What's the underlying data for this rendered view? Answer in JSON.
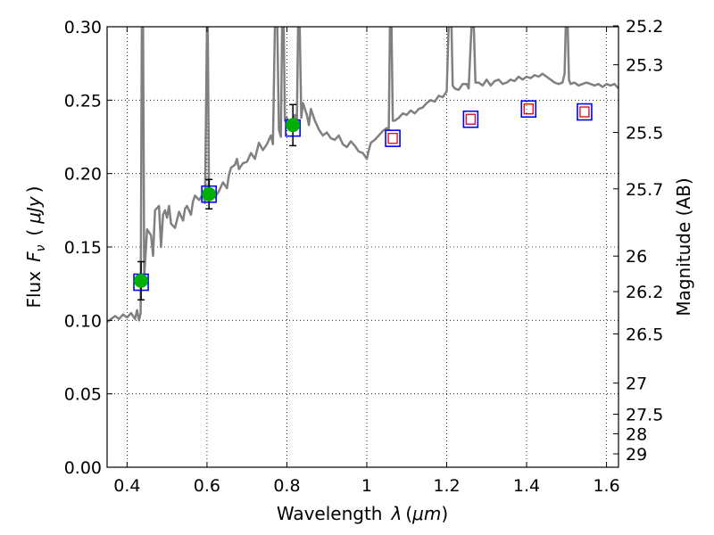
{
  "chart_data": {
    "type": "line",
    "title": "",
    "xlabel": "Wavelength",
    "xlabel_symbol": "λ",
    "xlabel_unit": "μm",
    "ylabel": "Flux",
    "ylabel_symbol": "F",
    "ylabel_symbol_sub": "ν",
    "ylabel_unit": "μJy",
    "y2label": "Magnitude (AB)",
    "xlim": [
      0.35,
      1.63
    ],
    "ylim": [
      0.0,
      0.3
    ],
    "grid": true,
    "x_ticks": [
      0.4,
      0.6,
      0.8,
      1.0,
      1.2,
      1.4,
      1.6
    ],
    "x_tick_labels": [
      "0.4",
      "0.6",
      "0.8",
      "1",
      "1.2",
      "1.4",
      "1.6"
    ],
    "y_ticks": [
      0.0,
      0.05,
      0.1,
      0.15,
      0.2,
      0.25,
      0.3
    ],
    "y_tick_labels": [
      "0.00",
      "0.05",
      "0.10",
      "0.15",
      "0.20",
      "0.25",
      "0.30"
    ],
    "y2_ticks": [
      {
        "label": "25.2",
        "flux": 0.3006
      },
      {
        "label": "25.3",
        "flux": 0.2741
      },
      {
        "label": "25.5",
        "flux": 0.228
      },
      {
        "label": "25.7",
        "flux": 0.1896
      },
      {
        "label": "26",
        "flux": 0.1438
      },
      {
        "label": "26.2",
        "flux": 0.1196
      },
      {
        "label": "26.5",
        "flux": 0.0908
      },
      {
        "label": "27",
        "flux": 0.0573
      },
      {
        "label": "27.5",
        "flux": 0.0361
      },
      {
        "label": "28",
        "flux": 0.0228
      },
      {
        "label": "29",
        "flux": 0.0091
      }
    ],
    "series": [
      {
        "style": "line",
        "color": "#808080",
        "points": [
          [
            0.35,
            0.099
          ],
          [
            0.36,
            0.101
          ],
          [
            0.37,
            0.103
          ],
          [
            0.38,
            0.101
          ],
          [
            0.39,
            0.104
          ],
          [
            0.4,
            0.102
          ],
          [
            0.41,
            0.105
          ],
          [
            0.42,
            0.101
          ],
          [
            0.425,
            0.107
          ],
          [
            0.43,
            0.1
          ],
          [
            0.434,
            0.105
          ],
          [
            0.437,
            0.3
          ],
          [
            0.44,
            0.3
          ],
          [
            0.443,
            0.13
          ],
          [
            0.45,
            0.162
          ],
          [
            0.46,
            0.158
          ],
          [
            0.465,
            0.144
          ],
          [
            0.47,
            0.175
          ],
          [
            0.48,
            0.178
          ],
          [
            0.485,
            0.15
          ],
          [
            0.49,
            0.172
          ],
          [
            0.495,
            0.175
          ],
          [
            0.5,
            0.17
          ],
          [
            0.505,
            0.178
          ],
          [
            0.51,
            0.166
          ],
          [
            0.52,
            0.163
          ],
          [
            0.53,
            0.174
          ],
          [
            0.54,
            0.168
          ],
          [
            0.545,
            0.176
          ],
          [
            0.55,
            0.178
          ],
          [
            0.56,
            0.172
          ],
          [
            0.565,
            0.181
          ],
          [
            0.57,
            0.185
          ],
          [
            0.58,
            0.182
          ],
          [
            0.59,
            0.186
          ],
          [
            0.595,
            0.18
          ],
          [
            0.6,
            0.3
          ],
          [
            0.602,
            0.3
          ],
          [
            0.605,
            0.183
          ],
          [
            0.61,
            0.186
          ],
          [
            0.62,
            0.184
          ],
          [
            0.63,
            0.188
          ],
          [
            0.64,
            0.194
          ],
          [
            0.65,
            0.19
          ],
          [
            0.655,
            0.199
          ],
          [
            0.66,
            0.204
          ],
          [
            0.67,
            0.206
          ],
          [
            0.675,
            0.21
          ],
          [
            0.68,
            0.203
          ],
          [
            0.69,
            0.207
          ],
          [
            0.7,
            0.208
          ],
          [
            0.71,
            0.214
          ],
          [
            0.72,
            0.21
          ],
          [
            0.73,
            0.221
          ],
          [
            0.74,
            0.216
          ],
          [
            0.75,
            0.22
          ],
          [
            0.76,
            0.226
          ],
          [
            0.765,
            0.22
          ],
          [
            0.77,
            0.3
          ],
          [
            0.776,
            0.3
          ],
          [
            0.78,
            0.23
          ],
          [
            0.785,
            0.225
          ],
          [
            0.788,
            0.3
          ],
          [
            0.792,
            0.3
          ],
          [
            0.795,
            0.236
          ],
          [
            0.8,
            0.238
          ],
          [
            0.81,
            0.231
          ],
          [
            0.82,
            0.24
          ],
          [
            0.825,
            0.234
          ],
          [
            0.828,
            0.3
          ],
          [
            0.832,
            0.3
          ],
          [
            0.836,
            0.238
          ],
          [
            0.84,
            0.248
          ],
          [
            0.85,
            0.24
          ],
          [
            0.855,
            0.233
          ],
          [
            0.86,
            0.244
          ],
          [
            0.87,
            0.236
          ],
          [
            0.88,
            0.23
          ],
          [
            0.89,
            0.226
          ],
          [
            0.9,
            0.228
          ],
          [
            0.91,
            0.224
          ],
          [
            0.92,
            0.223
          ],
          [
            0.93,
            0.226
          ],
          [
            0.94,
            0.22
          ],
          [
            0.95,
            0.218
          ],
          [
            0.96,
            0.222
          ],
          [
            0.97,
            0.219
          ],
          [
            0.98,
            0.215
          ],
          [
            0.99,
            0.214
          ],
          [
            1.0,
            0.21
          ],
          [
            1.005,
            0.216
          ],
          [
            1.01,
            0.221
          ],
          [
            1.02,
            0.223
          ],
          [
            1.03,
            0.226
          ],
          [
            1.04,
            0.229
          ],
          [
            1.05,
            0.231
          ],
          [
            1.055,
            0.23
          ],
          [
            1.058,
            0.3
          ],
          [
            1.062,
            0.3
          ],
          [
            1.065,
            0.236
          ],
          [
            1.07,
            0.236
          ],
          [
            1.08,
            0.238
          ],
          [
            1.09,
            0.241
          ],
          [
            1.1,
            0.24
          ],
          [
            1.11,
            0.243
          ],
          [
            1.12,
            0.241
          ],
          [
            1.13,
            0.244
          ],
          [
            1.14,
            0.245
          ],
          [
            1.15,
            0.248
          ],
          [
            1.16,
            0.25
          ],
          [
            1.17,
            0.249
          ],
          [
            1.18,
            0.253
          ],
          [
            1.19,
            0.252
          ],
          [
            1.2,
            0.256
          ],
          [
            1.205,
            0.3
          ],
          [
            1.212,
            0.3
          ],
          [
            1.215,
            0.26
          ],
          [
            1.22,
            0.258
          ],
          [
            1.23,
            0.257
          ],
          [
            1.24,
            0.261
          ],
          [
            1.25,
            0.261
          ],
          [
            1.255,
            0.258
          ],
          [
            1.262,
            0.3
          ],
          [
            1.268,
            0.3
          ],
          [
            1.272,
            0.262
          ],
          [
            1.28,
            0.262
          ],
          [
            1.29,
            0.26
          ],
          [
            1.3,
            0.264
          ],
          [
            1.31,
            0.26
          ],
          [
            1.32,
            0.263
          ],
          [
            1.33,
            0.264
          ],
          [
            1.34,
            0.261
          ],
          [
            1.35,
            0.262
          ],
          [
            1.36,
            0.264
          ],
          [
            1.37,
            0.263
          ],
          [
            1.38,
            0.266
          ],
          [
            1.39,
            0.264
          ],
          [
            1.4,
            0.266
          ],
          [
            1.41,
            0.265
          ],
          [
            1.42,
            0.267
          ],
          [
            1.43,
            0.266
          ],
          [
            1.44,
            0.268
          ],
          [
            1.45,
            0.266
          ],
          [
            1.46,
            0.264
          ],
          [
            1.47,
            0.262
          ],
          [
            1.48,
            0.261
          ],
          [
            1.49,
            0.262
          ],
          [
            1.495,
            0.268
          ],
          [
            1.498,
            0.3
          ],
          [
            1.503,
            0.3
          ],
          [
            1.506,
            0.264
          ],
          [
            1.51,
            0.261
          ],
          [
            1.52,
            0.262
          ],
          [
            1.53,
            0.26
          ],
          [
            1.54,
            0.261
          ],
          [
            1.55,
            0.262
          ],
          [
            1.56,
            0.261
          ],
          [
            1.57,
            0.26
          ],
          [
            1.58,
            0.261
          ],
          [
            1.59,
            0.259
          ],
          [
            1.6,
            0.261
          ],
          [
            1.61,
            0.26
          ],
          [
            1.62,
            0.261
          ],
          [
            1.63,
            0.258
          ]
        ]
      },
      {
        "style": "markers",
        "marker": "square-blue",
        "points": [
          [
            0.435,
            0.126
          ],
          [
            0.605,
            0.186
          ],
          [
            0.815,
            0.231
          ],
          [
            1.065,
            0.224
          ],
          [
            1.26,
            0.237
          ],
          [
            1.405,
            0.244
          ],
          [
            1.545,
            0.242
          ]
        ]
      },
      {
        "style": "markers",
        "marker": "square-red",
        "points": [
          [
            1.065,
            0.224
          ],
          [
            1.26,
            0.237
          ],
          [
            1.405,
            0.244
          ],
          [
            1.545,
            0.242
          ]
        ]
      },
      {
        "style": "markers",
        "marker": "circle-green",
        "points": [
          [
            0.435,
            0.127
          ],
          [
            0.605,
            0.186
          ],
          [
            0.815,
            0.233
          ]
        ],
        "errors": [
          0.013,
          0.01,
          0.014
        ]
      }
    ]
  },
  "colors": {
    "spectrum": "#808080",
    "model_square": "#0000ff",
    "upper_limit_square": "#e01020",
    "detection": "#00b000",
    "grid": "#000000"
  }
}
